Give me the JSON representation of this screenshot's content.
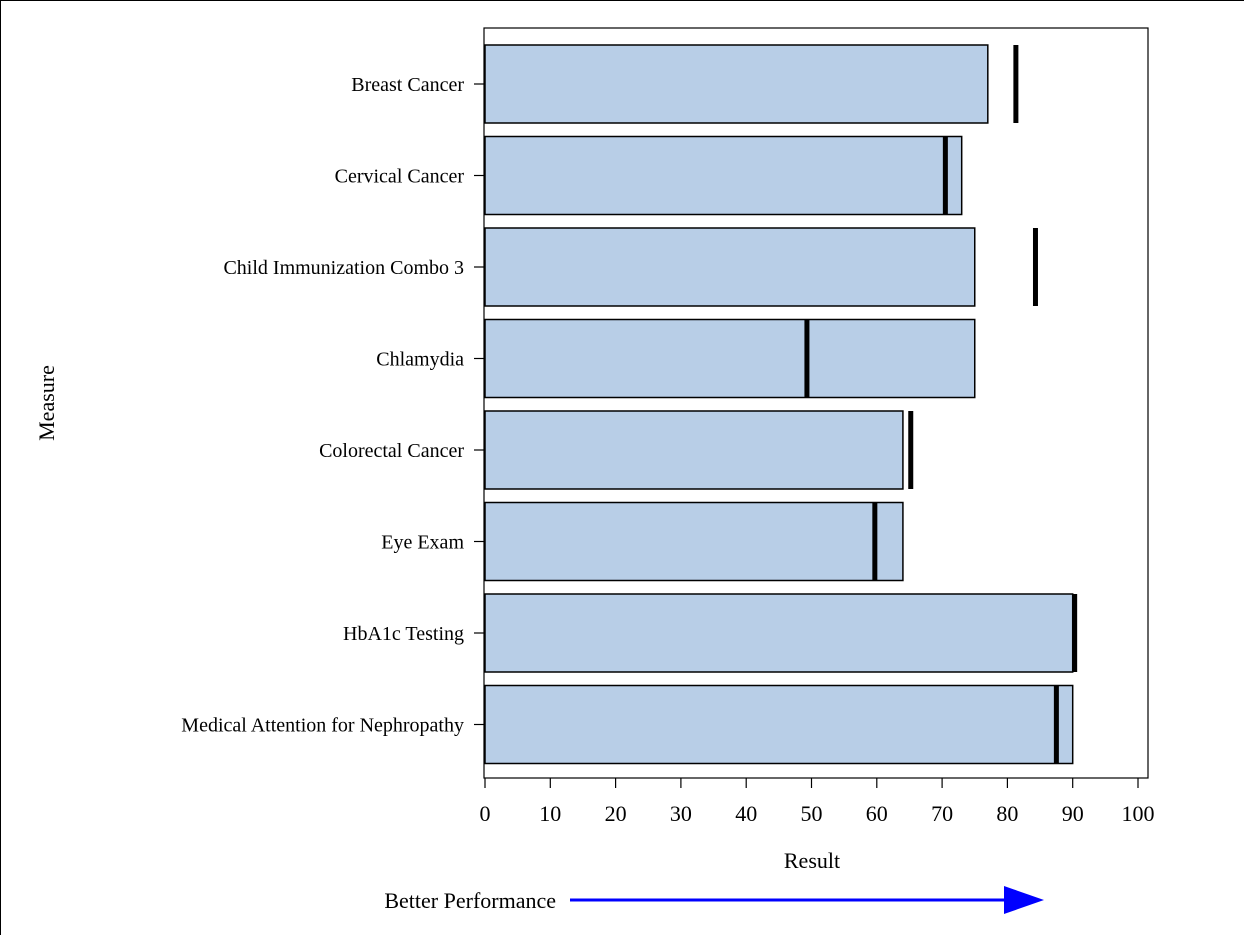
{
  "chart_data": {
    "type": "bar",
    "orientation": "horizontal",
    "categories": [
      "Breast Cancer",
      "Cervical Cancer",
      "Child Immunization Combo 3",
      "Chlamydia",
      "Colorectal Cancer",
      "Eye Exam",
      "HbA1c Testing",
      "Medical Attention for Nephropathy"
    ],
    "values": [
      77,
      73,
      75,
      75,
      64,
      64,
      90,
      90
    ],
    "targets": [
      81.3,
      70.5,
      84.3,
      49.3,
      65.2,
      59.7,
      90.3,
      87.5
    ],
    "xlabel": "Result",
    "ylabel": "Measure",
    "xlim": [
      0,
      100
    ],
    "xticks": [
      0,
      10,
      20,
      30,
      40,
      50,
      60,
      70,
      80,
      90,
      100
    ],
    "grid": false,
    "colors": {
      "bar": "#b8cee7",
      "bar_edge": "#000000",
      "target": "#000000",
      "arrow": "#0000ff"
    },
    "annotation": {
      "text": "Better Performance",
      "arrow_direction": "right"
    }
  }
}
